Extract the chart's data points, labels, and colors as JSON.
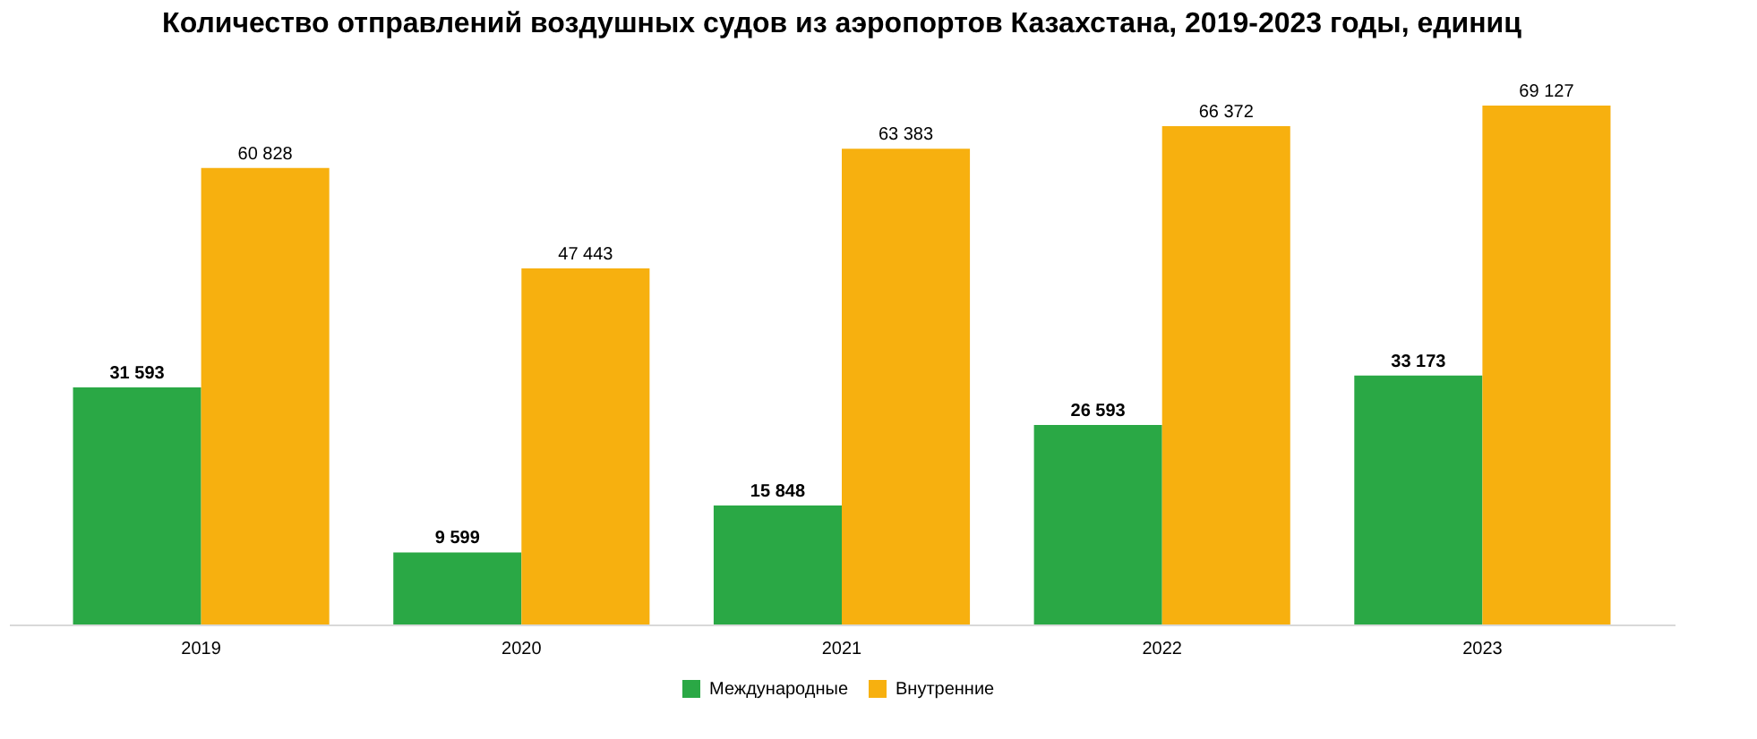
{
  "chart_data": {
    "type": "bar",
    "title": "Количество отправлений воздушных судов из аэропортов Казахстана, 2019-2023 годы, единиц",
    "categories": [
      "2019",
      "2020",
      "2021",
      "2022",
      "2023"
    ],
    "series": [
      {
        "name": "Международные",
        "color": "#2aa845",
        "values": [
          31593,
          9599,
          15848,
          26593,
          33173
        ],
        "value_labels": [
          "31 593",
          "9 599",
          "15 848",
          "26 593",
          "33 173"
        ]
      },
      {
        "name": "Внутренние",
        "color": "#f7b00f",
        "values": [
          60828,
          47443,
          63383,
          66372,
          69127
        ],
        "value_labels": [
          "60 828",
          "47 443",
          "63 383",
          "66 372",
          "69 127"
        ]
      }
    ],
    "legend": "bottom"
  }
}
